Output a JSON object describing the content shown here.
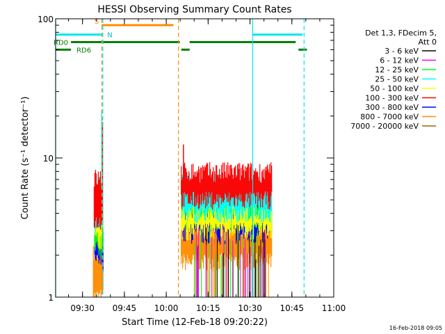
{
  "chart_data": {
    "type": "line",
    "title": "HESSI Observing Summary Count Rates",
    "xlabel": "Start Time (12-Feb-18 09:20:22)",
    "ylabel": "Count Rate (s⁻¹ detector⁻¹)",
    "yscale": "log",
    "ylim": [
      1,
      100
    ],
    "xlim": [
      "09:20:22",
      "11:00:00"
    ],
    "x_ticks": [
      "09:30",
      "09:45",
      "10:00",
      "10:15",
      "10:30",
      "10:45",
      "11:00"
    ],
    "x_tick_minutes": [
      9.63,
      24.63,
      39.63,
      54.63,
      69.63,
      84.63,
      99.63
    ],
    "y_ticks": [
      1,
      10,
      100
    ],
    "legend": {
      "placement": "right",
      "header": [
        "Det 1,3, FDecim 5,",
        "Att 0"
      ],
      "entries": [
        {
          "name": "3 - 6 keV",
          "color": "#000000"
        },
        {
          "name": "6 - 12 keV",
          "color": "#ff00ff"
        },
        {
          "name": "12 - 25 keV",
          "color": "#00ff00"
        },
        {
          "name": "25 - 50 keV",
          "color": "#00ffff"
        },
        {
          "name": "50 - 100 keV",
          "color": "#ffff00"
        },
        {
          "name": "100 - 300 keV",
          "color": "#ff0000"
        },
        {
          "name": "300 - 800 keV",
          "color": "#0000ff"
        },
        {
          "name": "800 - 7000 keV",
          "color": "#ff8c00"
        },
        {
          "name": "7000 - 20000 keV",
          "color": "#996600"
        }
      ]
    },
    "flags": [
      {
        "label": "S",
        "color": "#ff8c00",
        "level": 90,
        "segments": [
          [
            16.5,
            42.2
          ]
        ]
      },
      {
        "label": "N",
        "color": "#00e5ee",
        "level": 77,
        "segments": [
          [
            0,
            16.5
          ],
          [
            70.5,
            88.5
          ]
        ]
      },
      {
        "label": "RD0",
        "color": "#008000",
        "level": 68,
        "segments": [
          [
            5.5,
            44.5
          ],
          [
            48.0,
            86.0
          ]
        ]
      },
      {
        "label": "RD6",
        "color": "#008000",
        "level": 60,
        "segments": [
          [
            0,
            5.5
          ],
          [
            45.0,
            48.0
          ],
          [
            87.0,
            90.0
          ]
        ]
      }
    ],
    "vertical_markers": [
      {
        "x": 0.0,
        "color": "#00e5ee",
        "style": "solid"
      },
      {
        "x": 16.6,
        "color": "#ff8c00",
        "style": "dashed"
      },
      {
        "x": 16.9,
        "color": "#00e5ee",
        "style": "dashed"
      },
      {
        "x": 44.0,
        "color": "#ff8c00",
        "style": "dashed"
      },
      {
        "x": 70.6,
        "color": "#00e5ee",
        "style": "solid"
      },
      {
        "x": 89.0,
        "color": "#00e5ee",
        "style": "dashed"
      }
    ],
    "series_bands": [
      {
        "name": "800 - 7000 keV",
        "color": "#ff8c00",
        "segments": [
          {
            "x": [
              13.5,
              17.0
            ],
            "low": 1.0,
            "high": 2.0
          },
          {
            "x": [
              45.0,
              77.5
            ],
            "low": 1.8,
            "high": 3.2
          }
        ]
      },
      {
        "name": "300 - 800 keV",
        "color": "#0000ff",
        "segments": [
          {
            "x": [
              14.0,
              17.0
            ],
            "low": 1.8,
            "high": 3.5
          },
          {
            "x": [
              45.5,
              77.5
            ],
            "low": 2.8,
            "high": 4.5
          }
        ]
      },
      {
        "name": "12 - 25 keV",
        "color": "#00ff00",
        "segments": [
          {
            "x": [
              14.0,
              17.0
            ],
            "low": 2.2,
            "high": 3.5
          },
          {
            "x": [
              45.0,
              77.5
            ],
            "low": 3.5,
            "high": 5.0
          }
        ]
      },
      {
        "name": "50 - 100 keV",
        "color": "#ffff00",
        "segments": [
          {
            "x": [
              14.0,
              17.0
            ],
            "low": 2.6,
            "high": 4.0
          },
          {
            "x": [
              45.0,
              77.5
            ],
            "low": 3.0,
            "high": 4.2
          }
        ]
      },
      {
        "name": "25 - 50 keV",
        "color": "#00ffff",
        "segments": [
          {
            "x": [
              14.2,
              17.0
            ],
            "low": 3.2,
            "high": 6.5
          },
          {
            "x": [
              45.0,
              77.5
            ],
            "low": 4.0,
            "high": 6.5
          }
        ]
      },
      {
        "name": "100 - 300 keV",
        "color": "#ff0000",
        "segments": [
          {
            "x": [
              13.8,
              17.0
            ],
            "low": 3.5,
            "high": 7.0
          },
          {
            "x": [
              45.0,
              77.5
            ],
            "low": 5.0,
            "high": 7.8
          }
        ]
      }
    ],
    "peaks": [
      {
        "name": "25 - 50 keV",
        "x": 16.5,
        "y": 22
      },
      {
        "name": "100 - 300 keV",
        "x": 16.8,
        "y": 18
      },
      {
        "name": "100 - 300 keV",
        "x": 45.8,
        "y": 12.5
      }
    ],
    "footer_stamp": "16-Feb-2018 09:05"
  }
}
